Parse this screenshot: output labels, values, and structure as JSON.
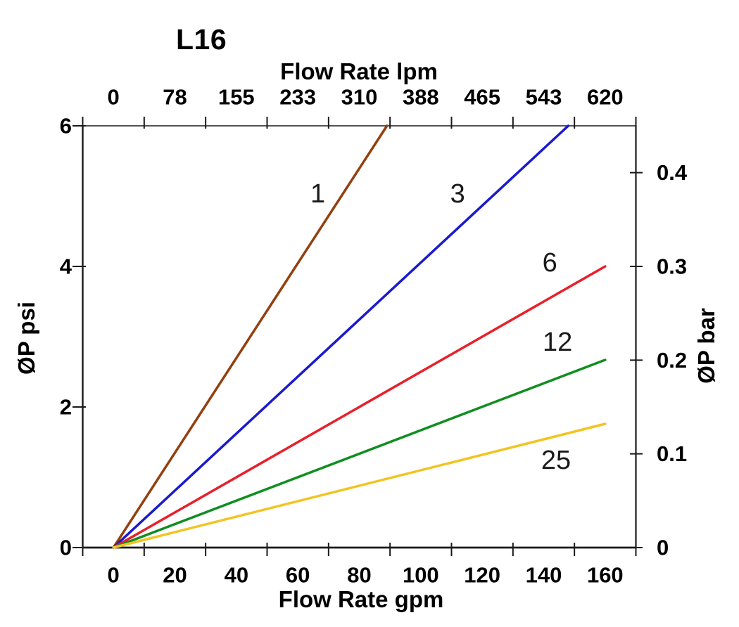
{
  "chart_data": {
    "type": "line",
    "title": "L16",
    "background": "#ffffff",
    "grid": false,
    "legend": "none (inline curve labels)",
    "axes": {
      "top": {
        "label": "Flow Rate lpm",
        "tick_labels": [
          "0",
          "78",
          "155",
          "233",
          "310",
          "388",
          "465",
          "543",
          "620"
        ]
      },
      "bottom": {
        "label": "Flow Rate gpm",
        "tick_labels": [
          "0",
          "20",
          "40",
          "60",
          "80",
          "100",
          "120",
          "140",
          "160"
        ],
        "range": [
          0,
          160
        ]
      },
      "left": {
        "label": "ØP psi",
        "tick_labels": [
          "0",
          "2",
          "4",
          "6"
        ],
        "range": [
          0,
          6
        ]
      },
      "right": {
        "label": "ØP bar",
        "tick_labels": [
          "0",
          "0.1",
          "0.2",
          "0.3",
          "0.4"
        ],
        "bar_per_psi": 0.075
      }
    },
    "series": [
      {
        "name": "1",
        "color": "#93400F",
        "points": [
          [
            0,
            0
          ],
          [
            89,
            6
          ]
        ],
        "label_at": [
          66.5,
          5.03
        ]
      },
      {
        "name": "3",
        "color": "#1A1ACF",
        "points": [
          [
            0,
            0
          ],
          [
            148,
            6
          ]
        ],
        "label_at": [
          112,
          5.03
        ]
      },
      {
        "name": "6",
        "color": "#E8202A",
        "points": [
          [
            0,
            0
          ],
          [
            160,
            4
          ]
        ],
        "label_at": [
          142,
          4.05
        ]
      },
      {
        "name": "12",
        "color": "#108E20",
        "points": [
          [
            0,
            0
          ],
          [
            160,
            2.67
          ]
        ],
        "label_at": [
          144.5,
          2.92
        ]
      },
      {
        "name": "25",
        "color": "#F4C320",
        "points": [
          [
            0,
            0
          ],
          [
            160,
            1.76
          ]
        ],
        "label_at": [
          144,
          1.24
        ]
      }
    ]
  }
}
